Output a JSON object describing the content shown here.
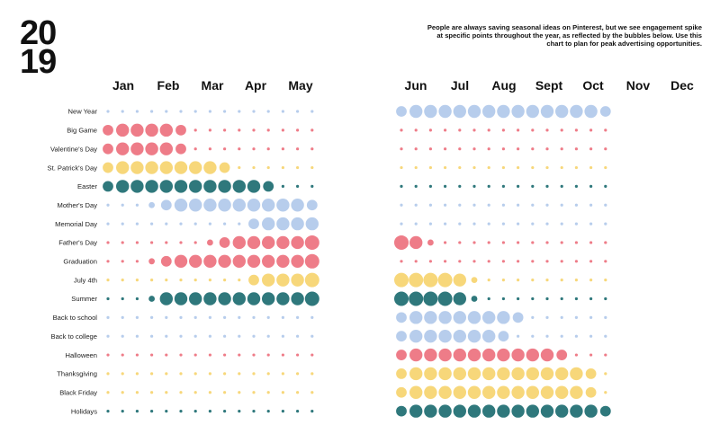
{
  "header": {
    "year_top": "20",
    "year_bottom": "19",
    "description": "People are always saving seasonal ideas on Pinterest, but we see engagement spike at specific points throughout the year, as reflected by the bubbles below. Use this chart to plan for peak advertising opportunities."
  },
  "colors": {
    "blue": "#b7cdec",
    "red": "#ee7c88",
    "yellow": "#f7d77a",
    "teal": "#2f787c"
  },
  "chart_data": {
    "type": "bubble-calendar",
    "value_scale": "0 = minimal dot, 4 = largest bubble",
    "months": [
      "Jan",
      "Feb",
      "Mar",
      "Apr",
      "May",
      "Jun",
      "Jul",
      "Aug",
      "Sept",
      "Oct",
      "Nov",
      "Dec"
    ],
    "columns_per_half": 15,
    "series": [
      {
        "name": "New Year",
        "color": "blue",
        "left": [
          0,
          0,
          0,
          0,
          0,
          0,
          0,
          0,
          0,
          0,
          0,
          0,
          0,
          0,
          0
        ],
        "right": [
          2,
          3,
          3,
          3,
          3,
          3,
          3,
          3,
          3,
          3,
          3,
          3,
          3,
          3,
          2
        ]
      },
      {
        "name": "Big Game",
        "color": "red",
        "left": [
          2,
          3,
          3,
          3,
          3,
          2,
          0,
          0,
          0,
          0,
          0,
          0,
          0,
          0,
          0
        ],
        "right": [
          0,
          0,
          0,
          0,
          0,
          0,
          0,
          0,
          0,
          0,
          0,
          0,
          0,
          0,
          0
        ]
      },
      {
        "name": "Valentine's Day",
        "color": "red",
        "left": [
          2,
          3,
          3,
          3,
          3,
          2,
          0,
          0,
          0,
          0,
          0,
          0,
          0,
          0,
          0
        ],
        "right": [
          0,
          0,
          0,
          0,
          0,
          0,
          0,
          0,
          0,
          0,
          0,
          0,
          0,
          0,
          0
        ]
      },
      {
        "name": "St. Patrick's Day",
        "color": "yellow",
        "left": [
          2,
          3,
          3,
          3,
          3,
          3,
          3,
          3,
          2,
          0,
          0,
          0,
          0,
          0,
          0
        ],
        "right": [
          0,
          0,
          0,
          0,
          0,
          0,
          0,
          0,
          0,
          0,
          0,
          0,
          0,
          0,
          0
        ]
      },
      {
        "name": "Easter",
        "color": "teal",
        "left": [
          2,
          3,
          3,
          3,
          3,
          3,
          3,
          3,
          3,
          3,
          3,
          2,
          0,
          0,
          0
        ],
        "right": [
          0,
          0,
          0,
          0,
          0,
          0,
          0,
          0,
          0,
          0,
          0,
          0,
          0,
          0,
          0
        ]
      },
      {
        "name": "Mother's Day",
        "color": "blue",
        "left": [
          0,
          0,
          0,
          1,
          2,
          3,
          3,
          3,
          3,
          3,
          3,
          3,
          3,
          3,
          2
        ],
        "right": [
          0,
          0,
          0,
          0,
          0,
          0,
          0,
          0,
          0,
          0,
          0,
          0,
          0,
          0,
          0
        ]
      },
      {
        "name": "Memorial Day",
        "color": "blue",
        "left": [
          0,
          0,
          0,
          0,
          0,
          0,
          0,
          0,
          0,
          0,
          2,
          3,
          3,
          3,
          3
        ],
        "right": [
          0,
          0,
          0,
          0,
          0,
          0,
          0,
          0,
          0,
          0,
          0,
          0,
          0,
          0,
          0
        ]
      },
      {
        "name": "Father's Day",
        "color": "red",
        "left": [
          0,
          0,
          0,
          0,
          0,
          0,
          0,
          1,
          2,
          3,
          3,
          3,
          3,
          3,
          4
        ],
        "right": [
          4,
          3,
          1,
          0,
          0,
          0,
          0,
          0,
          0,
          0,
          0,
          0,
          0,
          0,
          0
        ]
      },
      {
        "name": "Graduation",
        "color": "red",
        "left": [
          0,
          0,
          0,
          1,
          2,
          3,
          3,
          3,
          3,
          3,
          3,
          3,
          3,
          3,
          4
        ],
        "right": [
          0,
          0,
          0,
          0,
          0,
          0,
          0,
          0,
          0,
          0,
          0,
          0,
          0,
          0,
          0
        ]
      },
      {
        "name": "July 4th",
        "color": "yellow",
        "left": [
          0,
          0,
          0,
          0,
          0,
          0,
          0,
          0,
          0,
          0,
          2,
          3,
          3,
          3,
          4
        ],
        "right": [
          4,
          4,
          4,
          4,
          3,
          1,
          0,
          0,
          0,
          0,
          0,
          0,
          0,
          0,
          0
        ]
      },
      {
        "name": "Summer",
        "color": "teal",
        "left": [
          0,
          0,
          0,
          1,
          3,
          3,
          3,
          3,
          3,
          3,
          3,
          3,
          3,
          3,
          4
        ],
        "right": [
          4,
          4,
          4,
          4,
          3,
          1,
          0,
          0,
          0,
          0,
          0,
          0,
          0,
          0,
          0
        ]
      },
      {
        "name": "Back to school",
        "color": "blue",
        "left": [
          0,
          0,
          0,
          0,
          0,
          0,
          0,
          0,
          0,
          0,
          0,
          0,
          0,
          0,
          0
        ],
        "right": [
          2,
          3,
          3,
          3,
          3,
          3,
          3,
          3,
          2,
          0,
          0,
          0,
          0,
          0,
          0
        ]
      },
      {
        "name": "Back to college",
        "color": "blue",
        "left": [
          0,
          0,
          0,
          0,
          0,
          0,
          0,
          0,
          0,
          0,
          0,
          0,
          0,
          0,
          0
        ],
        "right": [
          2,
          3,
          3,
          3,
          3,
          3,
          3,
          2,
          0,
          0,
          0,
          0,
          0,
          0,
          0
        ]
      },
      {
        "name": "Halloween",
        "color": "red",
        "left": [
          0,
          0,
          0,
          0,
          0,
          0,
          0,
          0,
          0,
          0,
          0,
          0,
          0,
          0,
          0
        ],
        "right": [
          2,
          3,
          3,
          3,
          3,
          3,
          3,
          3,
          3,
          3,
          3,
          2,
          0,
          0,
          0
        ]
      },
      {
        "name": "Thanksgiving",
        "color": "yellow",
        "left": [
          0,
          0,
          0,
          0,
          0,
          0,
          0,
          0,
          0,
          0,
          0,
          0,
          0,
          0,
          0
        ],
        "right": [
          2,
          3,
          3,
          3,
          3,
          3,
          3,
          3,
          3,
          3,
          3,
          3,
          3,
          2,
          0
        ]
      },
      {
        "name": "Black Friday",
        "color": "yellow",
        "left": [
          0,
          0,
          0,
          0,
          0,
          0,
          0,
          0,
          0,
          0,
          0,
          0,
          0,
          0,
          0
        ],
        "right": [
          2,
          3,
          3,
          3,
          3,
          3,
          3,
          3,
          3,
          3,
          3,
          3,
          3,
          2,
          0
        ]
      },
      {
        "name": "Holidays",
        "color": "teal",
        "left": [
          0,
          0,
          0,
          0,
          0,
          0,
          0,
          0,
          0,
          0,
          0,
          0,
          0,
          0,
          0
        ],
        "right": [
          2,
          3,
          3,
          3,
          3,
          3,
          3,
          3,
          3,
          3,
          3,
          3,
          3,
          3,
          2
        ]
      }
    ]
  }
}
